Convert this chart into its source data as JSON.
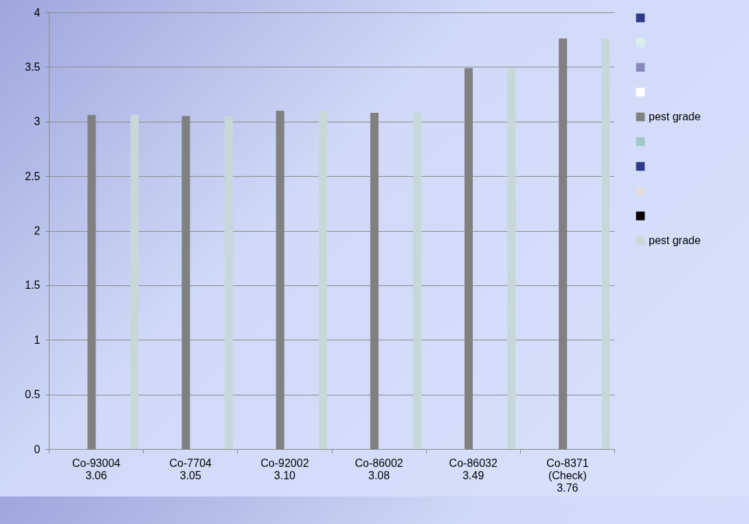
{
  "chart_data": {
    "type": "bar",
    "categories": [
      "Co-93004 3.06",
      "Co-7704 3.05",
      "Co-92002 3.10",
      "Co-86002 3.08",
      "Co-86032 3.49",
      "Co-8371 (Check) 3.76"
    ],
    "series": [
      {
        "color": "#2e3a87",
        "values": [
          null,
          null,
          null,
          null,
          null,
          null
        ]
      },
      {
        "color": "#d8ecec",
        "values": [
          null,
          null,
          null,
          null,
          null,
          null
        ]
      },
      {
        "color": "#8888bb",
        "values": [
          null,
          null,
          null,
          null,
          null,
          null
        ]
      },
      {
        "color": "#ffffff",
        "values": [
          null,
          null,
          null,
          null,
          null,
          null
        ]
      },
      {
        "name": "pest grade",
        "color": "#808080",
        "values": [
          3.06,
          3.05,
          3.1,
          3.08,
          3.49,
          3.76
        ]
      },
      {
        "color": "#a0c8c8",
        "values": [
          null,
          null,
          null,
          null,
          null,
          null
        ]
      },
      {
        "color": "#2e3a87",
        "values": [
          null,
          null,
          null,
          null,
          null,
          null
        ]
      },
      {
        "color": "#e0e0e0",
        "values": [
          null,
          null,
          null,
          null,
          null,
          null
        ]
      },
      {
        "color": "#000000",
        "values": [
          null,
          null,
          null,
          null,
          null,
          null
        ]
      },
      {
        "name": "pest grade",
        "color": "#c8d8d8",
        "values": [
          3.06,
          3.05,
          3.1,
          3.08,
          3.49,
          3.76
        ]
      }
    ],
    "ylim": [
      0,
      4
    ],
    "yticks": [
      0,
      0.5,
      1,
      1.5,
      2,
      2.5,
      3,
      3.5,
      4
    ],
    "grid": "y",
    "legend": "right"
  }
}
